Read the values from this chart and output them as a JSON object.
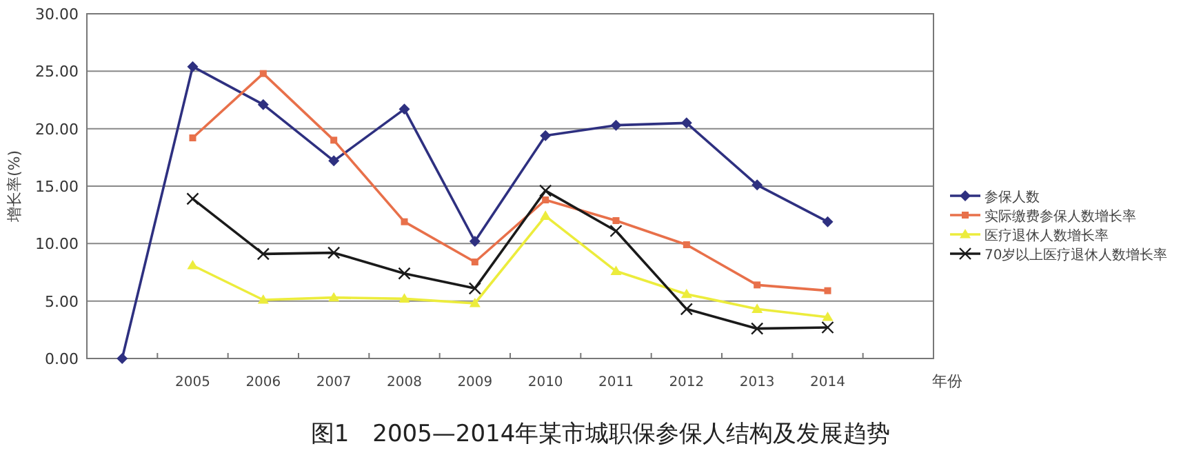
{
  "chart_data": {
    "type": "line",
    "title": "图1　2005—2014年某市城职保参保人结构及发展趋势",
    "xlabel": "年份",
    "ylabel": "增长率(%)",
    "categories": [
      null,
      "2005",
      "2006",
      "2007",
      "2008",
      "2009",
      "2010",
      "2011",
      "2012",
      "2013",
      "2014",
      null
    ],
    "ylim": [
      0,
      30
    ],
    "yticks": [
      {
        "value": 0,
        "label": "0.00"
      },
      {
        "value": 5,
        "label": "5.00"
      },
      {
        "value": 10,
        "label": "10.00"
      },
      {
        "value": 15,
        "label": "15.00"
      },
      {
        "value": 20,
        "label": "20.00"
      },
      {
        "value": 25,
        "label": "25.00"
      },
      {
        "value": 30,
        "label": "30.00"
      }
    ],
    "grid": "y",
    "legend": "right",
    "line_style": "solid",
    "series": [
      {
        "name": "参保人数",
        "color": "#2e3080",
        "marker": "diamond",
        "values": [
          0,
          25.4,
          22.1,
          17.2,
          21.7,
          10.2,
          19.4,
          20.3,
          20.5,
          15.1,
          11.9,
          null
        ]
      },
      {
        "name": "实际缴费参保人数增长率",
        "color": "#e8704a",
        "marker": "square",
        "values": [
          null,
          19.2,
          24.8,
          19.0,
          11.9,
          8.4,
          13.8,
          12.0,
          9.9,
          6.4,
          5.9,
          null
        ]
      },
      {
        "name": "医疗退休人数增长率",
        "color": "#ecec3c",
        "marker": "triangle",
        "values": [
          null,
          8.1,
          5.1,
          5.3,
          5.2,
          4.8,
          12.4,
          7.6,
          5.6,
          4.3,
          3.6,
          null
        ]
      },
      {
        "name": "70岁以上医疗退休人数增长率",
        "color": "#1a1a1a",
        "marker": "cross",
        "values": [
          null,
          13.9,
          9.1,
          9.2,
          7.4,
          6.1,
          14.6,
          11.1,
          4.3,
          2.6,
          2.7,
          null
        ]
      }
    ]
  }
}
